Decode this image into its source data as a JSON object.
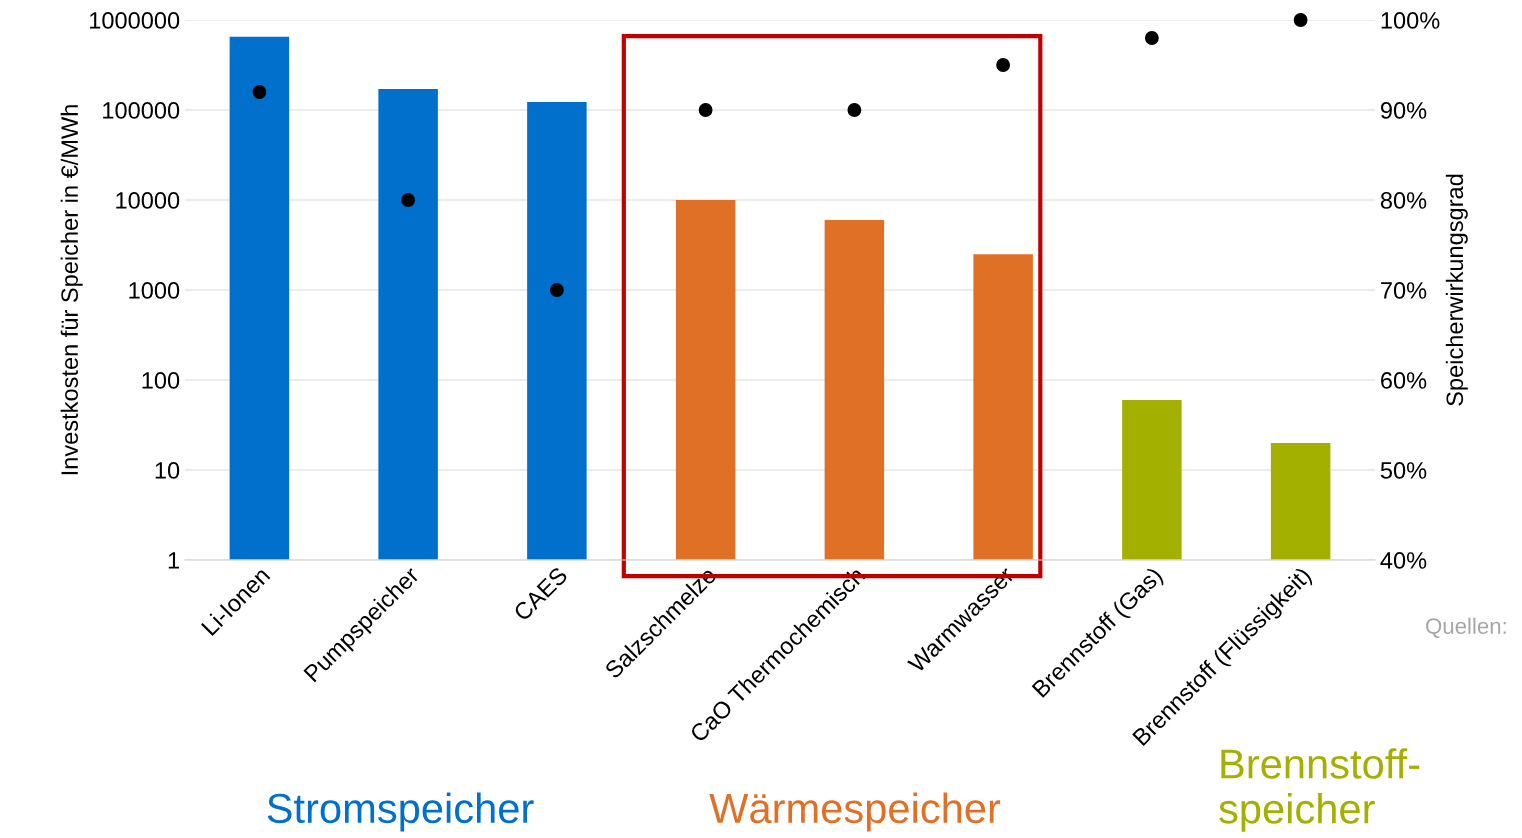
{
  "chart_data": {
    "type": "bar",
    "ylabel": "Investkosten für Speicher in €/MWh",
    "y2label": "Speicherwirkungsgrad",
    "categories": [
      "Li-Ionen",
      "Pumpspeicher",
      "CAES",
      "Salzschmelze",
      "CaO Thermochemisch",
      "Warmwasser",
      "Brennstoff (Gas)",
      "Brennstoff (Flüssigkeit)"
    ],
    "series": [
      {
        "values": [
          650000,
          171000,
          123000,
          10000,
          6000,
          2500,
          60,
          20
        ],
        "colors": [
          "#0070cc",
          "#0070cc",
          "#0070cc",
          "#e07025",
          "#e07025",
          "#e07025",
          "#a3b000",
          "#a3b000"
        ]
      },
      {
        "type": "scatter",
        "axis": "y2",
        "color": "#000000",
        "values": [
          92,
          80,
          70,
          90,
          90,
          95,
          98,
          100
        ]
      }
    ],
    "log": "y",
    "ylim": [
      1,
      1000000
    ],
    "yticks": [
      1,
      10,
      100,
      1000,
      10000,
      100000,
      1000000
    ],
    "y2lim": [
      40,
      100
    ],
    "y2ticks": [
      {
        "value": 40,
        "label": "40%"
      },
      {
        "value": 50,
        "label": "50%"
      },
      {
        "value": 60,
        "label": "60%"
      },
      {
        "value": 70,
        "label": "70%"
      },
      {
        "value": 80,
        "label": "80%"
      },
      {
        "value": 90,
        "label": "90%"
      },
      {
        "value": 100,
        "label": "100%"
      }
    ],
    "grid": "y",
    "marker": "circle",
    "legend": false,
    "annotations": [
      "Stromspeicher",
      "Wärmespeicher",
      "Brennstoff-\nspeicher",
      "Quellen:"
    ]
  }
}
